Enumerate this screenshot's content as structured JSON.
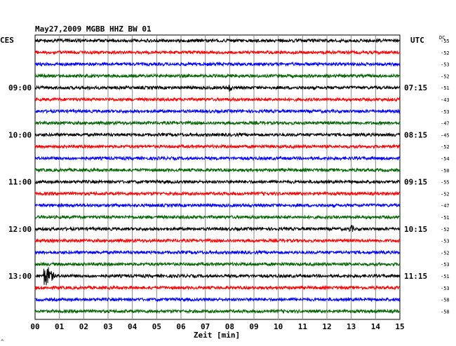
{
  "chart_data": {
    "type": "line",
    "title": "May27,2009   MGBB HHZ BW 01",
    "xlabel": "Zeit [min]",
    "left_unit": "CES",
    "right_unit": "UTC",
    "dc_header": "DC",
    "x_ticks": [
      "00",
      "01",
      "02",
      "03",
      "04",
      "05",
      "06",
      "07",
      "08",
      "09",
      "10",
      "11",
      "12",
      "13",
      "14",
      "15"
    ],
    "xlim": [
      0,
      15
    ],
    "grid": true,
    "left_hour_labels": [
      {
        "row": 4,
        "text": "09:00"
      },
      {
        "row": 8,
        "text": "10:00"
      },
      {
        "row": 12,
        "text": "11:00"
      },
      {
        "row": 16,
        "text": "12:00"
      },
      {
        "row": 20,
        "text": "13:00"
      }
    ],
    "right_hour_labels": [
      {
        "row": 4,
        "text": "07:15"
      },
      {
        "row": 8,
        "text": "08:15"
      },
      {
        "row": 12,
        "text": "09:15"
      },
      {
        "row": 16,
        "text": "10:15"
      },
      {
        "row": 20,
        "text": "11:15"
      }
    ],
    "trace_colors": [
      "#000000",
      "#ff0000",
      "#0000ff",
      "#006400"
    ],
    "dc_offsets": [
      -55,
      -52,
      -53,
      -52,
      -51,
      -43,
      -53,
      -47,
      -45,
      -52,
      -54,
      -50,
      -55,
      -52,
      -47,
      -51,
      -52,
      -53,
      -52,
      -53,
      -51,
      -53,
      -58,
      -58
    ],
    "events": [
      {
        "row": 20,
        "minute": 0.45,
        "amplitude": "large"
      },
      {
        "row": 16,
        "minute": 13.0,
        "amplitude": "small"
      },
      {
        "row": 4,
        "minute": 8.0,
        "amplitude": "small"
      }
    ],
    "corner_mark": "^"
  }
}
